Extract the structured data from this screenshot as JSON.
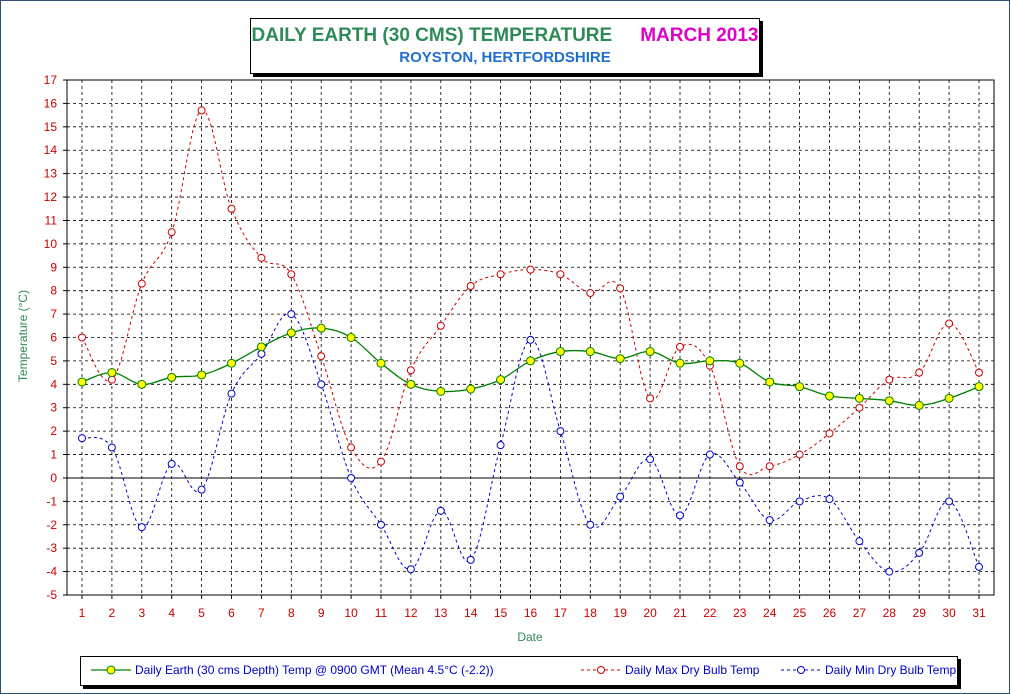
{
  "title": {
    "main": "DAILY EARTH (30 CMS) TEMPERATURE",
    "month": "MARCH 2013",
    "subtitle": "ROYSTON, HERTFORDSHIRE"
  },
  "chart_data": {
    "type": "line",
    "xlabel": "Date",
    "ylabel": "Temperature (°C)",
    "ylim": [
      -5,
      17
    ],
    "xlim": [
      1,
      31
    ],
    "grid": true,
    "legend_position": "bottom",
    "x": [
      1,
      2,
      3,
      4,
      5,
      6,
      7,
      8,
      9,
      10,
      11,
      12,
      13,
      14,
      15,
      16,
      17,
      18,
      19,
      20,
      21,
      22,
      23,
      24,
      25,
      26,
      27,
      28,
      29,
      30,
      31
    ],
    "series": [
      {
        "name": "Daily Earth (30 cms Depth) Temp @ 0900 GMT (Mean 4.5°C (-2.2))",
        "color": "#008000",
        "marker_fill": "#ffff00",
        "style": "solid",
        "values": [
          4.1,
          4.5,
          4.0,
          4.3,
          4.4,
          4.9,
          5.6,
          6.2,
          6.4,
          6.0,
          4.9,
          4.0,
          3.7,
          3.8,
          4.2,
          5.0,
          5.4,
          5.4,
          5.1,
          5.4,
          4.9,
          5.0,
          4.9,
          4.1,
          3.9,
          3.5,
          3.4,
          3.3,
          3.1,
          3.4,
          3.9
        ]
      },
      {
        "name": "Daily Max Dry Bulb Temp",
        "color": "#cc0000",
        "marker_fill": "#ffffff",
        "style": "dashed",
        "values": [
          6.0,
          4.2,
          8.3,
          10.5,
          15.7,
          11.5,
          9.4,
          8.7,
          5.2,
          1.3,
          0.7,
          4.6,
          6.5,
          8.2,
          8.7,
          8.9,
          8.7,
          7.9,
          8.1,
          3.4,
          5.6,
          4.8,
          0.5,
          0.5,
          1.0,
          1.9,
          3.0,
          4.2,
          4.5,
          6.6,
          4.5
        ]
      },
      {
        "name": "Daily Min Dry Bulb Temp",
        "color": "#0000cc",
        "marker_fill": "#ffffff",
        "style": "dashed",
        "values": [
          1.7,
          1.3,
          -2.1,
          0.6,
          -0.5,
          3.6,
          5.3,
          7.0,
          4.0,
          0.0,
          -2.0,
          -3.9,
          -1.4,
          -3.5,
          1.4,
          5.9,
          2.0,
          -2.0,
          -0.8,
          0.8,
          -1.6,
          1.0,
          -0.2,
          -1.8,
          -1.0,
          -0.9,
          -2.7,
          -4.0,
          -3.2,
          -1.0,
          -3.8
        ]
      }
    ]
  }
}
